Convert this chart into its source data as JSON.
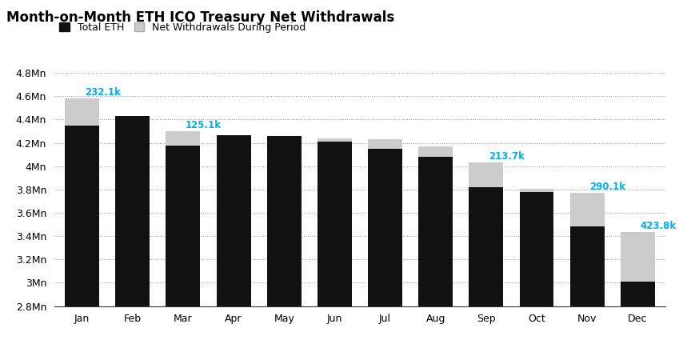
{
  "title": "Month-on-Month ETH ICO Treasury Net Withdrawals",
  "months": [
    "Jan",
    "Feb",
    "Mar",
    "Apr",
    "May",
    "Jun",
    "Jul",
    "Aug",
    "Sep",
    "Oct",
    "Nov",
    "Dec"
  ],
  "black_tops": [
    4350000,
    4430000,
    4175000,
    4265000,
    4255000,
    4210000,
    4150000,
    4080000,
    3820000,
    3780000,
    3480000,
    3010000
  ],
  "gray_amounts": [
    232100,
    0,
    125100,
    0,
    0,
    25000,
    80000,
    90000,
    213700,
    25000,
    290100,
    423800
  ],
  "annotations": [
    {
      "month_idx": 0,
      "label": "232.1k",
      "color": "#00b0f0"
    },
    {
      "month_idx": 2,
      "label": "125.1k",
      "color": "#00b0f0"
    },
    {
      "month_idx": 8,
      "label": "213.7k",
      "color": "#00b0f0"
    },
    {
      "month_idx": 10,
      "label": "290.1k",
      "color": "#00b0f0"
    },
    {
      "month_idx": 11,
      "label": "423.8k",
      "color": "#00b0f0"
    }
  ],
  "bar_color_black": "#111111",
  "bar_color_gray": "#cccccc",
  "ylim_min": 2800000,
  "ylim_max": 4900000,
  "yticks": [
    2800000,
    3000000,
    3200000,
    3400000,
    3600000,
    3800000,
    4000000,
    4200000,
    4400000,
    4600000,
    4800000
  ],
  "ytick_labels": [
    "2.8Mn",
    "3Mn",
    "3.2Mn",
    "3.4Mn",
    "3.6Mn",
    "3.8Mn",
    "4Mn",
    "4.2Mn",
    "4.4Mn",
    "4.6Mn",
    "4.8Mn"
  ],
  "legend_labels": [
    "Total ETH",
    "Net Withdrawals During Period"
  ],
  "legend_colors": [
    "#111111",
    "#cccccc"
  ],
  "background_color": "#ffffff",
  "grid_color": "#999999",
  "title_fontsize": 12,
  "axis_fontsize": 9,
  "annotation_fontsize": 8.5,
  "bar_width": 0.68
}
